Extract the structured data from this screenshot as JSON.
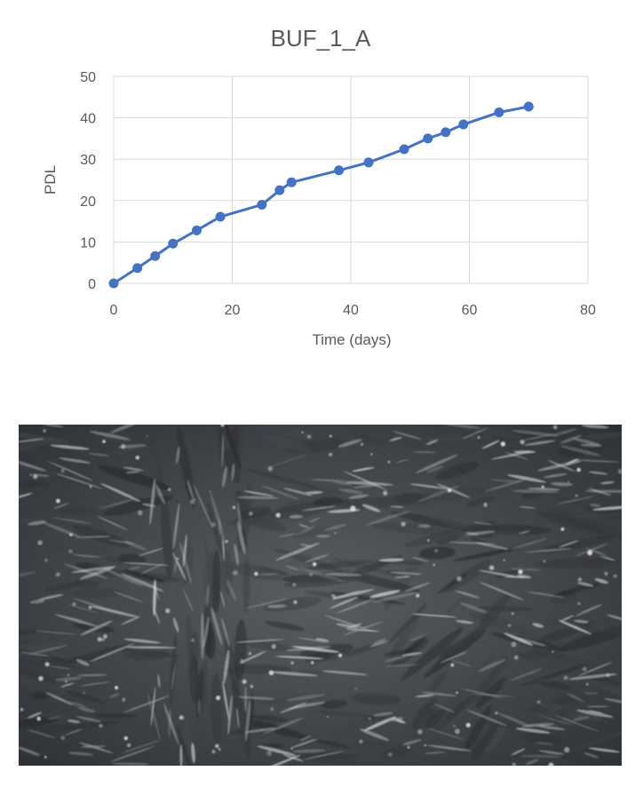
{
  "chart_data": {
    "type": "line",
    "title": "BUF_1_A",
    "xlabel": "Time (days)",
    "ylabel": "PDL",
    "xlim": [
      0,
      80
    ],
    "ylim": [
      0,
      50
    ],
    "xticks": [
      0,
      20,
      40,
      60,
      80
    ],
    "yticks": [
      0,
      10,
      20,
      30,
      40,
      50
    ],
    "grid": true,
    "legend": "none",
    "series": [
      {
        "color": "#4472C4",
        "x": [
          0,
          4,
          7,
          10,
          14,
          18,
          25,
          28,
          30,
          38,
          43,
          49,
          53,
          56,
          59,
          65,
          70
        ],
        "y": [
          0,
          3.7,
          6.6,
          9.6,
          12.8,
          16.1,
          19.0,
          22.5,
          24.4,
          27.3,
          29.2,
          32.4,
          35.0,
          36.5,
          38.4,
          41.3,
          42.7
        ]
      }
    ]
  },
  "micrograph": {
    "icon": "phase-contrast-cell-culture-micrograph"
  }
}
